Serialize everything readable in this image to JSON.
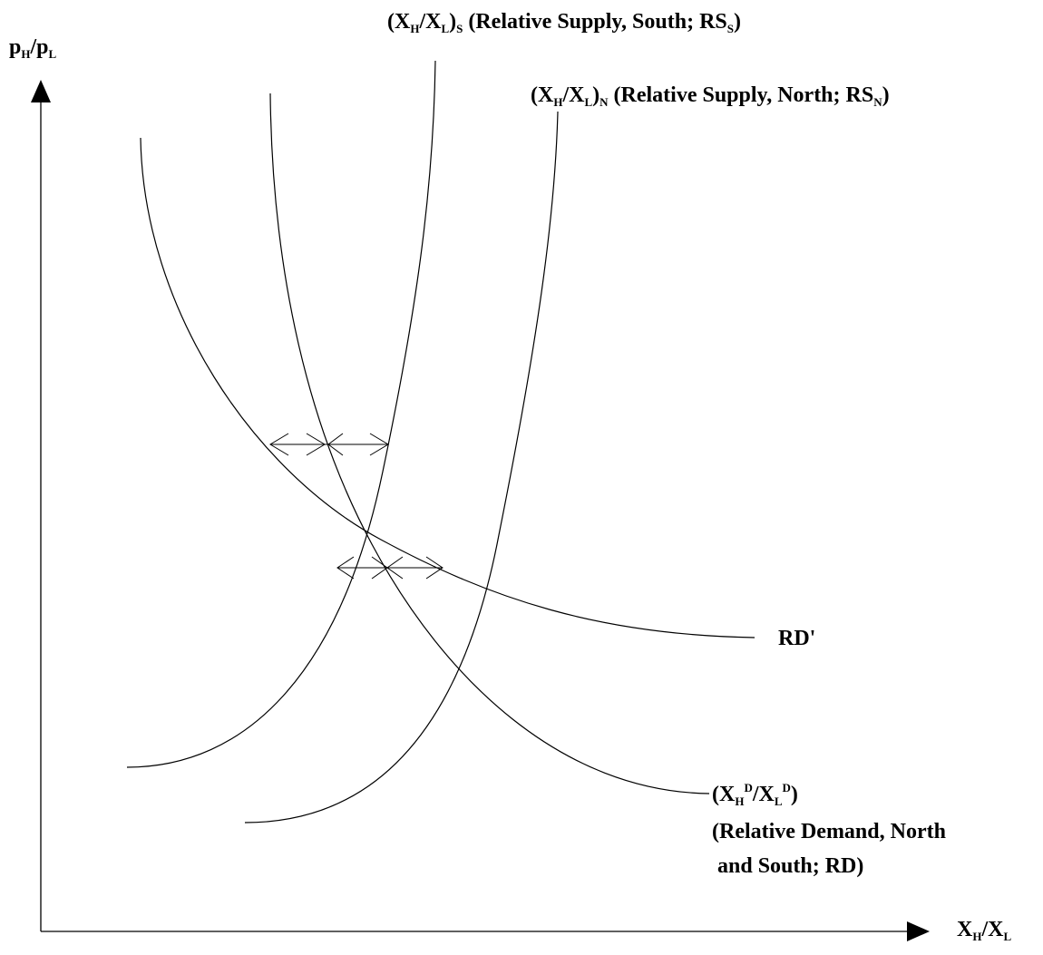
{
  "diagram": {
    "axes": {
      "y_label": {
        "p1": "p",
        "p1_sub": "H",
        "slash": "/",
        "p2": "p",
        "p2_sub": "L"
      },
      "x_label": {
        "x1": "X",
        "x1_sub": "H",
        "slash": "/",
        "x2": "X",
        "x2_sub": "L"
      }
    },
    "curves": {
      "rs_south": {
        "open": "(X",
        "sub1": "H",
        "mid": "/X",
        "sub2": "L",
        "close": ")",
        "sub3": "S",
        "desc": " (Relative Supply, South; RS",
        "desc_sub": "S",
        "desc_close": ")"
      },
      "rs_north": {
        "open": "(X",
        "sub1": "H",
        "mid": "/X",
        "sub2": "L",
        "close": ")",
        "sub3": "N",
        "desc": " (Relative Supply, North; RS",
        "desc_sub": "N",
        "desc_close": ")"
      },
      "rd_prime": {
        "label": "RD'"
      },
      "rd": {
        "open": "(X",
        "sub1": "H",
        "sup1": "D",
        "mid": "/X",
        "sub2": "L",
        "sup2": "D",
        "close": ")",
        "line2": "(Relative Demand, North",
        "line3": " and South; RD)"
      }
    },
    "colors": {
      "stroke": "#000000",
      "background": "#ffffff"
    }
  }
}
